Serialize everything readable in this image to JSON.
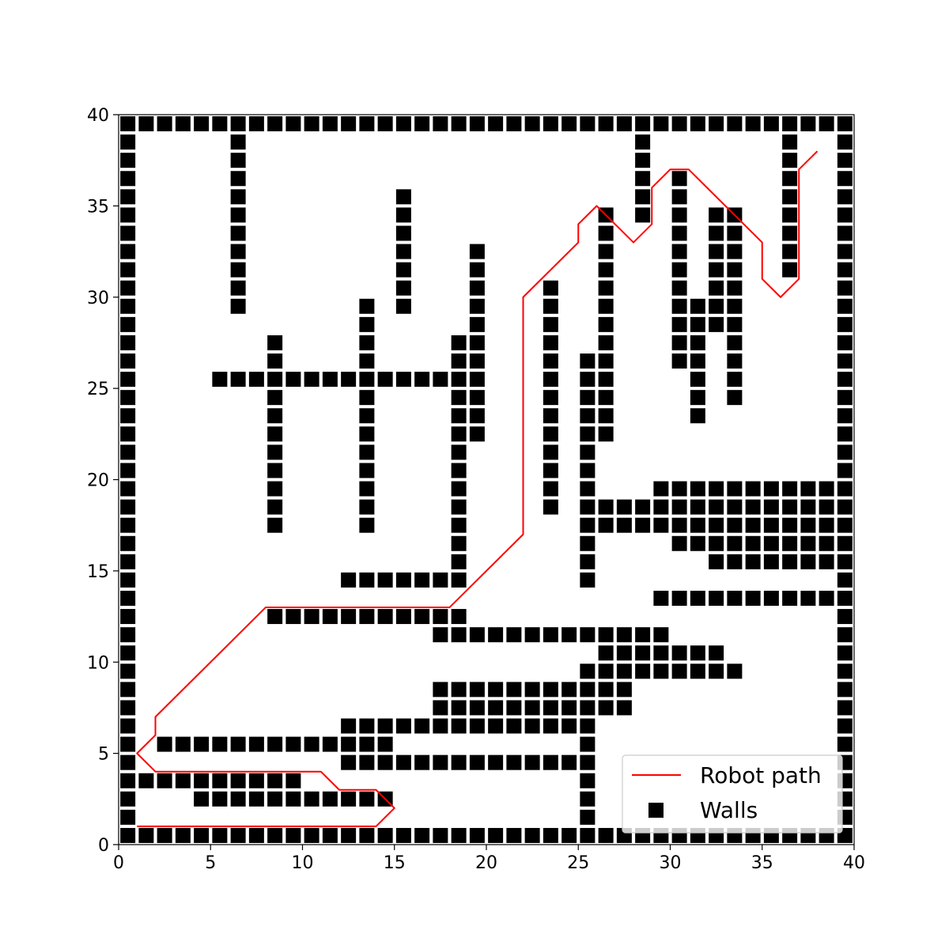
{
  "chart_data": {
    "type": "scatter",
    "title": "",
    "xlabel": "",
    "ylabel": "",
    "xlim": [
      0,
      40
    ],
    "ylim": [
      0,
      40
    ],
    "xticks": [
      "0",
      "5",
      "10",
      "15",
      "20",
      "25",
      "30",
      "35",
      "40"
    ],
    "yticks": [
      "0",
      "5",
      "10",
      "15",
      "20",
      "25",
      "30",
      "35",
      "40"
    ],
    "legend_position": "lower-right",
    "grid": false,
    "series": [
      {
        "name": "Robot path",
        "kind": "line",
        "color": "#ff0000",
        "points": [
          [
            1,
            1
          ],
          [
            14,
            1
          ],
          [
            15,
            2
          ],
          [
            14,
            3
          ],
          [
            12,
            3
          ],
          [
            11,
            4
          ],
          [
            2,
            4
          ],
          [
            1,
            5
          ],
          [
            2,
            6
          ],
          [
            2,
            7
          ],
          [
            8,
            13
          ],
          [
            18,
            13
          ],
          [
            22,
            17
          ],
          [
            22,
            30
          ],
          [
            25,
            33
          ],
          [
            25,
            34
          ],
          [
            26,
            35
          ],
          [
            28,
            33
          ],
          [
            29,
            34
          ],
          [
            29,
            36
          ],
          [
            30,
            37
          ],
          [
            31,
            37
          ],
          [
            35,
            33
          ],
          [
            35,
            31
          ],
          [
            36,
            30
          ],
          [
            37,
            31
          ],
          [
            37,
            37
          ],
          [
            38,
            38
          ]
        ]
      },
      {
        "name": "Walls",
        "kind": "square-marker",
        "color": "#000000",
        "rows": [
          {
            "y": 39,
            "x": [
              [
                0,
                39
              ]
            ]
          },
          {
            "y": 0,
            "x": [
              [
                0,
                39
              ]
            ]
          },
          {
            "y": 38,
            "x": [
              0,
              6,
              28,
              36,
              39
            ]
          },
          {
            "y": 37,
            "x": [
              0,
              6,
              28,
              36,
              39
            ]
          },
          {
            "y": 36,
            "x": [
              0,
              6,
              28,
              30,
              36,
              39
            ]
          },
          {
            "y": 35,
            "x": [
              0,
              6,
              15,
              28,
              30,
              36,
              39
            ]
          },
          {
            "y": 34,
            "x": [
              0,
              6,
              15,
              26,
              28,
              30,
              32,
              33,
              36,
              39
            ]
          },
          {
            "y": 33,
            "x": [
              0,
              6,
              15,
              26,
              30,
              32,
              33,
              36,
              39
            ]
          },
          {
            "y": 32,
            "x": [
              0,
              6,
              15,
              19,
              26,
              30,
              32,
              33,
              36,
              39
            ]
          },
          {
            "y": 31,
            "x": [
              0,
              6,
              15,
              19,
              26,
              30,
              32,
              33,
              36,
              39
            ]
          },
          {
            "y": 30,
            "x": [
              0,
              6,
              15,
              19,
              23,
              26,
              30,
              32,
              33,
              39
            ]
          },
          {
            "y": 29,
            "x": [
              0,
              6,
              13,
              15,
              19,
              23,
              26,
              30,
              31,
              32,
              33,
              39
            ]
          },
          {
            "y": 28,
            "x": [
              0,
              13,
              19,
              23,
              26,
              30,
              31,
              32,
              33,
              39
            ]
          },
          {
            "y": 27,
            "x": [
              0,
              8,
              13,
              18,
              19,
              23,
              26,
              30,
              31,
              33,
              39
            ]
          },
          {
            "y": 26,
            "x": [
              0,
              8,
              13,
              18,
              19,
              23,
              25,
              26,
              30,
              31,
              33,
              39
            ]
          },
          {
            "y": 25,
            "x": [
              0,
              [
                5,
                19
              ],
              23,
              25,
              26,
              31,
              33,
              39
            ]
          },
          {
            "y": 24,
            "x": [
              0,
              8,
              13,
              18,
              19,
              23,
              25,
              26,
              31,
              33,
              39
            ]
          },
          {
            "y": 23,
            "x": [
              0,
              8,
              13,
              18,
              19,
              23,
              25,
              26,
              31,
              39
            ]
          },
          {
            "y": 22,
            "x": [
              0,
              8,
              13,
              18,
              19,
              23,
              25,
              26,
              39
            ]
          },
          {
            "y": 21,
            "x": [
              0,
              8,
              13,
              18,
              23,
              25,
              39
            ]
          },
          {
            "y": 20,
            "x": [
              0,
              8,
              13,
              18,
              23,
              25,
              39
            ]
          },
          {
            "y": 19,
            "x": [
              0,
              8,
              13,
              18,
              23,
              25,
              [
                29,
                39
              ]
            ]
          },
          {
            "y": 18,
            "x": [
              0,
              8,
              13,
              18,
              23,
              [
                25,
                39
              ]
            ]
          },
          {
            "y": 17,
            "x": [
              0,
              8,
              13,
              18,
              [
                25,
                39
              ]
            ]
          },
          {
            "y": 16,
            "x": [
              0,
              18,
              25,
              [
                30,
                39
              ]
            ]
          },
          {
            "y": 15,
            "x": [
              0,
              18,
              25,
              [
                32,
                39
              ]
            ]
          },
          {
            "y": 14,
            "x": [
              0,
              [
                12,
                18
              ],
              25,
              39
            ]
          },
          {
            "y": 13,
            "x": [
              0,
              [
                29,
                39
              ]
            ]
          },
          {
            "y": 12,
            "x": [
              0,
              [
                8,
                18
              ],
              39
            ]
          },
          {
            "y": 11,
            "x": [
              0,
              [
                17,
                29
              ],
              39
            ]
          },
          {
            "y": 10,
            "x": [
              0,
              [
                26,
                32
              ],
              39
            ]
          },
          {
            "y": 9,
            "x": [
              0,
              [
                25,
                33
              ],
              39
            ]
          },
          {
            "y": 8,
            "x": [
              0,
              [
                17,
                27
              ],
              39
            ]
          },
          {
            "y": 7,
            "x": [
              0,
              [
                17,
                27
              ],
              39
            ]
          },
          {
            "y": 6,
            "x": [
              0,
              [
                12,
                25
              ],
              39
            ]
          },
          {
            "y": 5,
            "x": [
              0,
              [
                2,
                14
              ],
              25,
              39
            ]
          },
          {
            "y": 4,
            "x": [
              0,
              [
                12,
                25
              ],
              39
            ]
          },
          {
            "y": 3,
            "x": [
              [
                0,
                9
              ],
              25,
              39
            ]
          },
          {
            "y": 2,
            "x": [
              0,
              [
                4,
                14
              ],
              25,
              39
            ]
          },
          {
            "y": 1,
            "x": [
              0,
              25,
              39
            ]
          }
        ]
      }
    ]
  }
}
